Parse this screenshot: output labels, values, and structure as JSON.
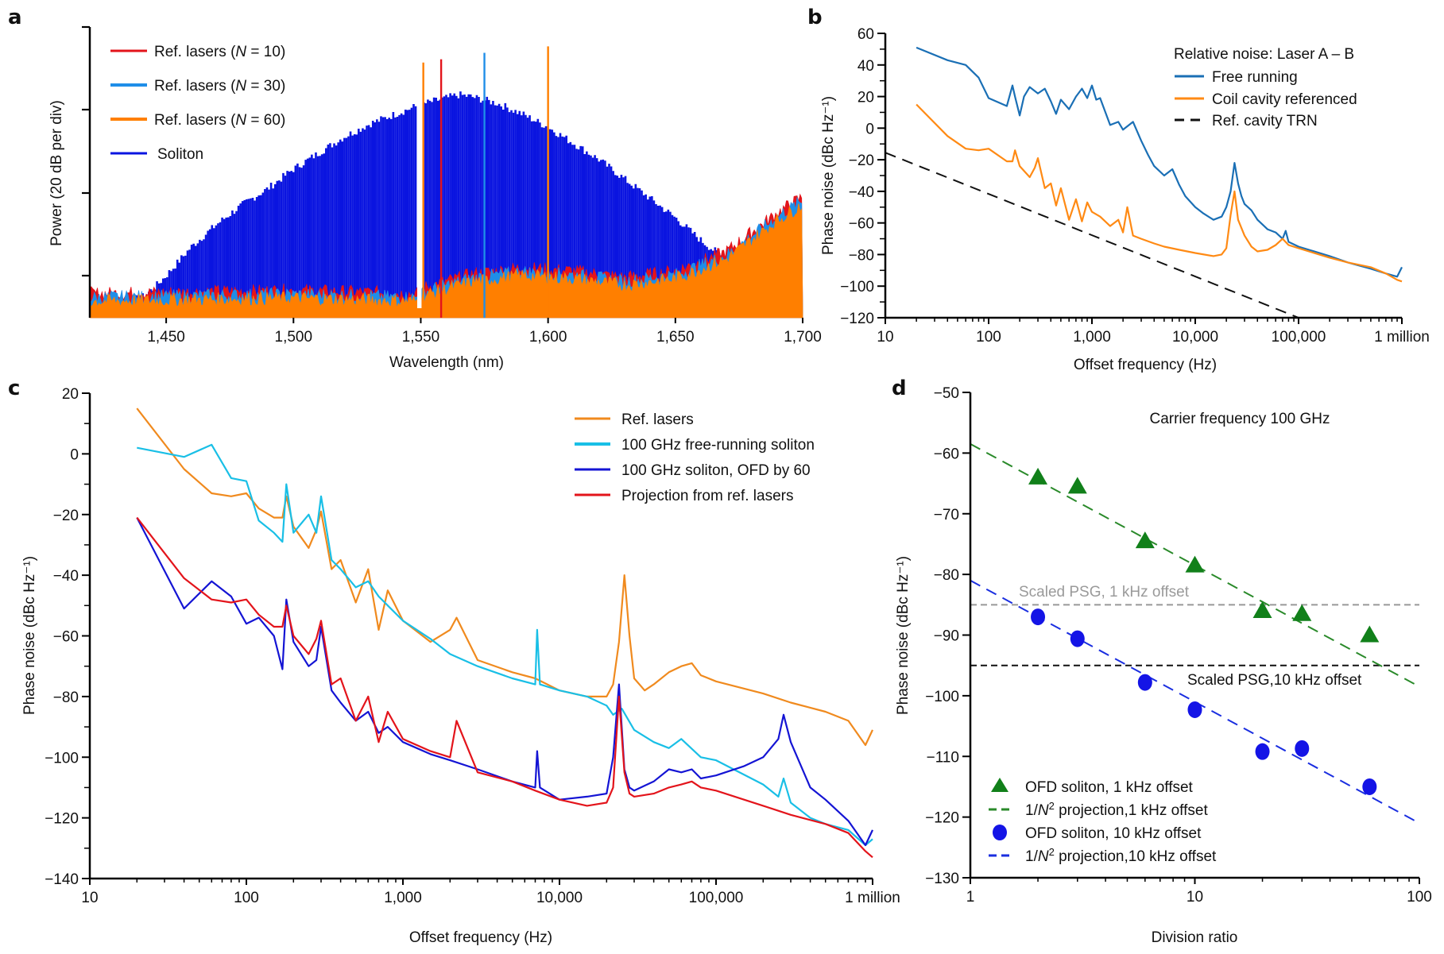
{
  "figure": {
    "panels": [
      "a",
      "b",
      "c",
      "d"
    ]
  },
  "chart_data": [
    {
      "id": "a",
      "type": "area",
      "title": "",
      "xlabel": "Wavelength (nm)",
      "ylabel": "Power (20 dB per div)",
      "xlim": [
        1420,
        1700
      ],
      "ylim": [
        0,
        4.5
      ],
      "y_unit_note": "divisions of 20 dB above the plot floor",
      "xticks": [
        1450,
        1500,
        1550,
        1600,
        1650,
        1700
      ],
      "xtick_labels": [
        "1,450",
        "1,500",
        "1,550",
        "1,600",
        "1,650",
        "1,700"
      ],
      "yticks": [
        1,
        2,
        3,
        4
      ],
      "ytick_labels": [
        "",
        "",
        "",
        ""
      ],
      "grid": false,
      "legend_position": "top-left",
      "colors": {
        "ref10": "#e3141b",
        "ref30": "#1f8ee8",
        "ref60": "#ff7f00",
        "soliton": "#0a14e0"
      },
      "series": [
        {
          "key": "ref10",
          "name": "Ref. lasers (N = 10)",
          "peaks": [
            {
              "x": 1558,
              "y": 4.0
            }
          ]
        },
        {
          "key": "ref30",
          "name": "Ref. lasers (N = 30)",
          "peaks": [
            {
              "x": 1575,
              "y": 4.1
            }
          ]
        },
        {
          "key": "ref60",
          "name": "Ref. lasers (N = 60)",
          "peaks": [
            {
              "x": 1551,
              "y": 3.95
            },
            {
              "x": 1600,
              "y": 4.2
            }
          ]
        },
        {
          "key": "soliton",
          "name": "Soliton",
          "envelope": {
            "x": [
              1420,
              1440,
              1445,
              1450,
              1460,
              1470,
              1480,
              1490,
              1500,
              1510,
              1520,
              1530,
              1540,
              1550,
              1560,
              1565,
              1570,
              1580,
              1590,
              1600,
              1610,
              1620,
              1630,
              1640,
              1650,
              1660,
              1670,
              1680
            ],
            "y": [
              0.2,
              0.3,
              0.45,
              0.65,
              1.1,
              1.45,
              1.75,
              2.0,
              2.3,
              2.55,
              2.8,
              3.0,
              3.15,
              3.3,
              3.4,
              3.45,
              3.42,
              3.32,
              3.15,
              2.95,
              2.7,
              2.45,
              2.15,
              1.85,
              1.55,
              1.2,
              0.9,
              0.65
            ]
          }
        },
        {
          "key": "floor",
          "name": "Ref. lasers noise floor",
          "envelope": {
            "x": [
              1420,
              1500,
              1548,
              1552,
              1570,
              1590,
              1610,
              1630,
              1650,
              1670,
              1690,
              1700
            ],
            "y": [
              0.25,
              0.3,
              0.25,
              0.35,
              0.55,
              0.65,
              0.6,
              0.5,
              0.6,
              0.9,
              1.5,
              1.75
            ]
          }
        }
      ]
    },
    {
      "id": "b",
      "type": "line",
      "title": "",
      "xlabel": "Offset frequency (Hz)",
      "ylabel": "Phase noise (dBc Hz⁻¹)",
      "xscale": "log",
      "xlim": [
        10,
        1000000
      ],
      "ylim": [
        -120,
        60
      ],
      "xticks": [
        10,
        100,
        1000,
        10000,
        100000,
        1000000
      ],
      "xtick_labels": [
        "10",
        "100",
        "1,000",
        "10,000",
        "100,000",
        "1 million"
      ],
      "yticks": [
        -120,
        -100,
        -80,
        -60,
        -40,
        -20,
        0,
        20,
        40,
        60
      ],
      "ytick_labels": [
        "−120",
        "−100",
        "−80",
        "−60",
        "−40",
        "−20",
        "0",
        "20",
        "40",
        "60"
      ],
      "grid": false,
      "legend_title": "Relative noise: Laser A – B",
      "legend_position": "top-right",
      "series": [
        {
          "name": "Free running",
          "color": "#1a6fb5",
          "style": "solid",
          "x": [
            20,
            40,
            60,
            80,
            100,
            150,
            170,
            180,
            200,
            220,
            250,
            300,
            350,
            400,
            450,
            500,
            600,
            700,
            800,
            900,
            1000,
            1100,
            1200,
            1500,
            1800,
            2000,
            2500,
            3000,
            3500,
            4000,
            5000,
            6000,
            7000,
            8000,
            10000,
            12000,
            15000,
            18000,
            20000,
            22000,
            24000,
            26000,
            28000,
            30000,
            35000,
            40000,
            50000,
            60000,
            70000,
            75000,
            80000,
            100000,
            200000,
            300000,
            500000,
            700000,
            900000,
            1000000
          ],
          "y": [
            51,
            43,
            40,
            32,
            19,
            14,
            27,
            20,
            8,
            20,
            26,
            22,
            25,
            17,
            9,
            18,
            12,
            20,
            25,
            19,
            27,
            18,
            19,
            2,
            4,
            -1,
            4,
            -8,
            -17,
            -24,
            -30,
            -26,
            -36,
            -43,
            -50,
            -54,
            -58,
            -56,
            -50,
            -40,
            -22,
            -35,
            -43,
            -48,
            -52,
            -58,
            -64,
            -66,
            -70,
            -65,
            -72,
            -75,
            -81,
            -85,
            -89,
            -92,
            -94,
            -88
          ]
        },
        {
          "name": "Coil cavity referenced",
          "color": "#ff8a14",
          "style": "solid",
          "x": [
            20,
            40,
            60,
            80,
            100,
            150,
            170,
            180,
            200,
            250,
            280,
            300,
            350,
            400,
            450,
            500,
            600,
            700,
            800,
            900,
            1000,
            1200,
            1500,
            1800,
            2000,
            2200,
            2500,
            3000,
            4000,
            5000,
            7000,
            10000,
            15000,
            18000,
            20000,
            22000,
            24000,
            26000,
            30000,
            35000,
            40000,
            50000,
            60000,
            70000,
            80000,
            100000,
            200000,
            300000,
            500000,
            700000,
            900000,
            1000000
          ],
          "y": [
            15,
            -5,
            -13,
            -14,
            -13,
            -21,
            -21,
            -14,
            -24,
            -31,
            -25,
            -19,
            -38,
            -35,
            -49,
            -38,
            -58,
            -45,
            -59,
            -47,
            -53,
            -56,
            -62,
            -58,
            -66,
            -50,
            -68,
            -70,
            -73,
            -75,
            -77,
            -79,
            -81,
            -80,
            -76,
            -55,
            -40,
            -58,
            -68,
            -75,
            -78,
            -77,
            -74,
            -70,
            -74,
            -76,
            -82,
            -85,
            -88,
            -92,
            -96,
            -97
          ]
        },
        {
          "name": "Ref. cavity TRN",
          "color": "#111111",
          "style": "dashed",
          "x": [
            10,
            100000
          ],
          "y": [
            -15.5,
            -120
          ]
        }
      ]
    },
    {
      "id": "c",
      "type": "line",
      "title": "",
      "xlabel": "Offset frequency (Hz)",
      "ylabel": "Phase noise (dBc Hz⁻¹)",
      "xscale": "log",
      "xlim": [
        10,
        1000000
      ],
      "ylim": [
        -140,
        20
      ],
      "xticks": [
        10,
        100,
        1000,
        10000,
        100000,
        1000000
      ],
      "xtick_labels": [
        "10",
        "100",
        "1,000",
        "10,000",
        "100,000",
        "1 million"
      ],
      "yticks": [
        -140,
        -120,
        -100,
        -80,
        -60,
        -40,
        -20,
        0,
        20
      ],
      "ytick_labels": [
        "−140",
        "−120",
        "−100",
        "−80",
        "−60",
        "−40",
        "−20",
        "0",
        "20"
      ],
      "grid": false,
      "legend_position": "top-right",
      "series": [
        {
          "name": "Ref. lasers",
          "color": "#f08a1e",
          "style": "solid",
          "x": [
            20,
            40,
            60,
            80,
            100,
            120,
            150,
            170,
            180,
            200,
            250,
            280,
            300,
            350,
            400,
            500,
            600,
            700,
            800,
            1000,
            1500,
            2000,
            2200,
            3000,
            5000,
            7000,
            10000,
            15000,
            20000,
            22000,
            24000,
            26000,
            28000,
            30000,
            35000,
            40000,
            50000,
            60000,
            70000,
            80000,
            100000,
            200000,
            300000,
            500000,
            700000,
            900000,
            1000000
          ],
          "y": [
            15,
            -5,
            -13,
            -14,
            -13,
            -18,
            -21,
            -21,
            -14,
            -24,
            -31,
            -25,
            -19,
            -38,
            -35,
            -49,
            -38,
            -58,
            -45,
            -55,
            -62,
            -58,
            -54,
            -68,
            -72,
            -74,
            -78,
            -80,
            -80,
            -76,
            -62,
            -40,
            -60,
            -74,
            -78,
            -76,
            -72,
            -70,
            -69,
            -73,
            -75,
            -79,
            -82,
            -85,
            -88,
            -96,
            -91
          ]
        },
        {
          "name": "100 GHz free-running soliton",
          "color": "#19bfe6",
          "style": "solid",
          "x": [
            20,
            40,
            60,
            80,
            100,
            120,
            150,
            170,
            180,
            200,
            250,
            280,
            300,
            350,
            400,
            500,
            600,
            700,
            800,
            1000,
            1500,
            2000,
            3000,
            5000,
            7000,
            7200,
            7500,
            10000,
            15000,
            20000,
            22000,
            25000,
            30000,
            40000,
            50000,
            60000,
            80000,
            100000,
            200000,
            250000,
            270000,
            300000,
            400000,
            500000,
            700000,
            900000,
            1000000
          ],
          "y": [
            2,
            -1,
            3,
            -8,
            -9,
            -22,
            -26,
            -29,
            -10,
            -26,
            -20,
            -26,
            -14,
            -35,
            -38,
            -44,
            -42,
            -47,
            -50,
            -55,
            -61,
            -66,
            -70,
            -74,
            -76,
            -58,
            -76,
            -78,
            -80,
            -83,
            -86,
            -84,
            -91,
            -95,
            -97,
            -94,
            -100,
            -101,
            -109,
            -113,
            -107,
            -115,
            -120,
            -122,
            -124,
            -129,
            -127
          ]
        },
        {
          "name": "100 GHz soliton, OFD by 60",
          "color": "#1414d4",
          "style": "solid",
          "x": [
            20,
            40,
            60,
            80,
            100,
            120,
            150,
            170,
            180,
            200,
            250,
            280,
            300,
            350,
            400,
            500,
            600,
            700,
            800,
            1000,
            1500,
            2000,
            3000,
            5000,
            7000,
            7200,
            7500,
            10000,
            15000,
            20000,
            22000,
            24000,
            26000,
            28000,
            30000,
            40000,
            50000,
            60000,
            70000,
            80000,
            100000,
            150000,
            200000,
            250000,
            270000,
            300000,
            400000,
            500000,
            700000,
            900000,
            1000000
          ],
          "y": [
            -21,
            -51,
            -42,
            -47,
            -56,
            -54,
            -60,
            -71,
            -48,
            -62,
            -70,
            -68,
            -57,
            -78,
            -82,
            -88,
            -85,
            -92,
            -90,
            -95,
            -99,
            -101,
            -104,
            -108,
            -110,
            -98,
            -110,
            -114,
            -113,
            -112,
            -100,
            -76,
            -104,
            -110,
            -111,
            -108,
            -104,
            -105,
            -104,
            -107,
            -106,
            -103,
            -100,
            -94,
            -86,
            -95,
            -110,
            -114,
            -121,
            -129,
            -124
          ]
        },
        {
          "name": "Projection from ref. lasers",
          "color": "#e3141b",
          "style": "solid",
          "x": [
            20,
            40,
            60,
            80,
            100,
            120,
            150,
            170,
            180,
            200,
            250,
            280,
            300,
            350,
            400,
            500,
            600,
            700,
            800,
            1000,
            1500,
            2000,
            2200,
            3000,
            5000,
            7000,
            10000,
            15000,
            20000,
            22000,
            24000,
            26000,
            28000,
            30000,
            40000,
            50000,
            60000,
            70000,
            80000,
            100000,
            200000,
            300000,
            500000,
            700000,
            900000,
            1000000
          ],
          "y": [
            -21,
            -41,
            -48,
            -49,
            -48,
            -53,
            -57,
            -57,
            -50,
            -60,
            -66,
            -61,
            -55,
            -76,
            -74,
            -88,
            -80,
            -95,
            -85,
            -94,
            -98,
            -100,
            -88,
            -105,
            -108,
            -111,
            -114,
            -116,
            -115,
            -110,
            -80,
            -105,
            -112,
            -113,
            -112,
            -110,
            -109,
            -108,
            -110,
            -111,
            -116,
            -119,
            -122,
            -125,
            -131,
            -133
          ]
        }
      ]
    },
    {
      "id": "d",
      "type": "scatter",
      "title": "Carrier frequency 100 GHz",
      "xlabel": "Division ratio",
      "ylabel": "Phase noise (dBc Hz⁻¹)",
      "xscale": "log",
      "xlim": [
        1,
        100
      ],
      "ylim": [
        -130,
        -50
      ],
      "xticks": [
        1,
        10,
        100
      ],
      "xtick_labels": [
        "1",
        "10",
        "100"
      ],
      "yticks": [
        -130,
        -120,
        -110,
        -100,
        -90,
        -80,
        -70,
        -60,
        -50
      ],
      "ytick_labels": [
        "−130",
        "−120",
        "−110",
        "−100",
        "−90",
        "−80",
        "−70",
        "−60",
        "−50"
      ],
      "grid": false,
      "legend_position": "bottom-left",
      "series": [
        {
          "name": "OFD soliton, 1 kHz offset",
          "color": "#11801a",
          "marker": "triangle",
          "x": [
            2,
            3,
            6,
            10,
            20,
            30,
            60
          ],
          "y": [
            -64,
            -65.5,
            -74.5,
            -78.5,
            -86,
            -86.5,
            -90
          ]
        },
        {
          "name": "1/N² projection,1 kHz offset",
          "color": "#2a8a2a",
          "style": "dashed",
          "x": [
            1,
            100
          ],
          "y": [
            -58.5,
            -98.5
          ]
        },
        {
          "name": "OFD soliton, 10 kHz offset",
          "color": "#1414e6",
          "marker": "circle",
          "x": [
            2,
            3,
            6,
            10,
            20,
            30,
            60
          ],
          "y": [
            -87,
            -90.6,
            -97.8,
            -102.3,
            -109.2,
            -108.7,
            -115
          ]
        },
        {
          "name": "1/N² projection,10 kHz offset",
          "color": "#1a2ee0",
          "style": "dashed",
          "x": [
            1,
            100
          ],
          "y": [
            -81,
            -121
          ]
        }
      ],
      "reference_lines": [
        {
          "label": "Scaled PSG, 1 kHz offset",
          "y": -85,
          "color": "#999999"
        },
        {
          "label": "Scaled PSG,10 kHz offset",
          "y": -95,
          "color": "#111111"
        }
      ]
    }
  ]
}
